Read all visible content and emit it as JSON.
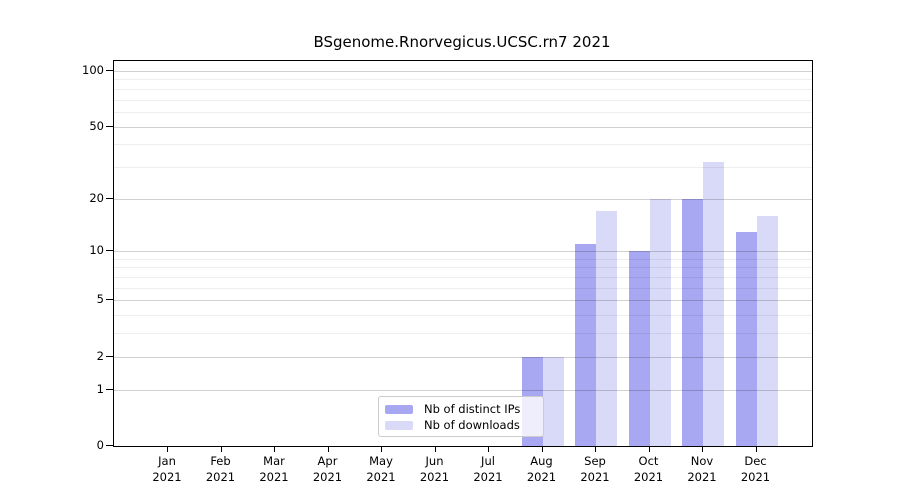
{
  "chart_data": {
    "type": "bar",
    "title": "BSgenome.Rnorvegicus.UCSC.rn7 2021",
    "x_categories_line1": [
      "Jan",
      "Feb",
      "Mar",
      "Apr",
      "May",
      "Jun",
      "Jul",
      "Aug",
      "Sep",
      "Oct",
      "Nov",
      "Dec"
    ],
    "x_categories_line2": "2021",
    "series": [
      {
        "name": "Nb of distinct IPs",
        "color": "#a8a8f2",
        "values": [
          0,
          0,
          0,
          0,
          0,
          0,
          0,
          2,
          11,
          10,
          20,
          13
        ]
      },
      {
        "name": "Nb of downloads",
        "color": "#d9d9f8",
        "values": [
          0,
          0,
          0,
          0,
          0,
          0,
          0,
          2,
          17,
          20,
          32,
          16
        ]
      }
    ],
    "yscale": "log1p",
    "ylim": [
      0,
      100
    ],
    "y_major_ticks": [
      0,
      1,
      2,
      5,
      10,
      20,
      50,
      100
    ],
    "y_minor_gridlines": [
      3,
      4,
      6,
      7,
      8,
      9,
      30,
      40,
      60,
      70,
      80,
      90
    ],
    "grid": true,
    "legend_position": "inside lower center",
    "colors": {
      "major_grid": "rgba(0,0,0,0.18)",
      "minor_grid": "rgba(0,0,0,0.065)",
      "spine": "#000000",
      "text": "#000000"
    }
  }
}
